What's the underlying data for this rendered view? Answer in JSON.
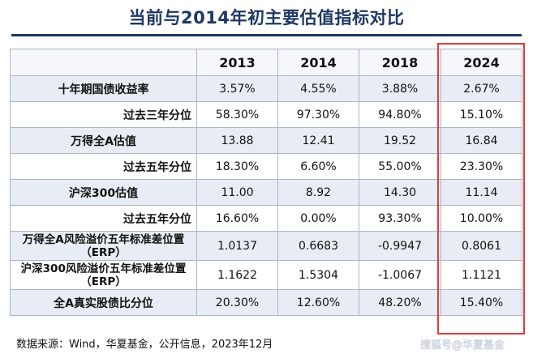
{
  "title": "当前与2014年初主要估值指标对比",
  "columns": [
    "",
    "2013",
    "2014",
    "2018",
    "2024"
  ],
  "rows": [
    {
      "label": "十年期国债收益率",
      "values": [
        "3.57%",
        "4.55%",
        "3.88%",
        "2.67%"
      ]
    },
    {
      "label": "过去三年分位",
      "values": [
        "58.30%",
        "97.30%",
        "94.80%",
        "15.10%"
      ]
    },
    {
      "label": "万得全A估值",
      "values": [
        "13.88",
        "12.41",
        "19.52",
        "16.84"
      ]
    },
    {
      "label": "过去五年分位",
      "values": [
        "18.30%",
        "6.60%",
        "55.00%",
        "23.30%"
      ]
    },
    {
      "label": "沪深300估值",
      "values": [
        "11.00",
        "8.92",
        "14.30",
        "11.14"
      ]
    },
    {
      "label": "过去五年分位",
      "values": [
        "16.60%",
        "0.00%",
        "93.30%",
        "10.00%"
      ]
    },
    {
      "label": "万得全A风险溢价五年标准差位置（ERP）",
      "values": [
        "1.0137",
        "0.6683",
        "-0.9947",
        "0.8061"
      ]
    },
    {
      "label": "沪深300风险溢价五年标准差位置（ERP）",
      "values": [
        "1.1622",
        "1.5304",
        "-1.0067",
        "1.1121"
      ]
    },
    {
      "label": "全A真实股债比分位",
      "values": [
        "20.30%",
        "12.60%",
        "48.20%",
        "15.40%"
      ]
    }
  ],
  "source": "数据来源：Wind，华夏基金，公开信息，2023年12月",
  "watermark": "搜狐号@华夏基金",
  "colors": {
    "title": "#1f3864",
    "highlight": "#e23b3b",
    "band": "#e8edf5"
  }
}
